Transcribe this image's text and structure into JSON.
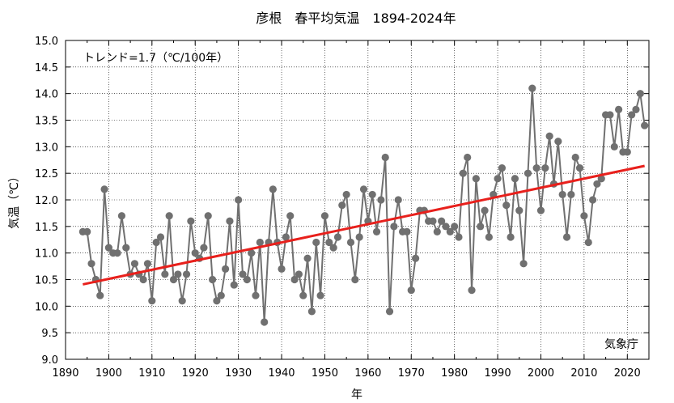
{
  "chart_data": {
    "type": "line",
    "title": "彦根　春平均気温　1894-2024年",
    "xlabel": "年",
    "ylabel": "気温（℃）",
    "annotation": "トレンド=1.7（℃/100年）",
    "source": "気象庁",
    "xlim": [
      1890,
      2025
    ],
    "ylim": [
      9.0,
      15.0
    ],
    "xticks": [
      "1890",
      "1900",
      "1910",
      "1920",
      "1930",
      "1940",
      "1950",
      "1960",
      "1970",
      "1980",
      "1990",
      "2000",
      "2010",
      "2020"
    ],
    "yticks": [
      "9.0",
      "9.5",
      "10.0",
      "10.5",
      "11.0",
      "11.5",
      "12.0",
      "12.5",
      "13.0",
      "13.5",
      "14.0",
      "14.5",
      "15.0"
    ],
    "grid": true,
    "series": [
      {
        "name": "春平均気温",
        "color": "#707070",
        "x": [
          1894,
          1895,
          1896,
          1897,
          1898,
          1899,
          1900,
          1901,
          1902,
          1903,
          1904,
          1905,
          1906,
          1907,
          1908,
          1909,
          1910,
          1911,
          1912,
          1913,
          1914,
          1915,
          1916,
          1917,
          1918,
          1919,
          1920,
          1921,
          1922,
          1923,
          1924,
          1925,
          1926,
          1927,
          1928,
          1929,
          1930,
          1931,
          1932,
          1933,
          1934,
          1935,
          1936,
          1937,
          1938,
          1939,
          1940,
          1941,
          1942,
          1943,
          1944,
          1945,
          1946,
          1947,
          1948,
          1949,
          1950,
          1951,
          1952,
          1953,
          1954,
          1955,
          1956,
          1957,
          1958,
          1959,
          1960,
          1961,
          1962,
          1963,
          1964,
          1965,
          1966,
          1967,
          1968,
          1969,
          1970,
          1971,
          1972,
          1973,
          1974,
          1975,
          1976,
          1977,
          1978,
          1979,
          1980,
          1981,
          1982,
          1983,
          1984,
          1985,
          1986,
          1987,
          1988,
          1989,
          1990,
          1991,
          1992,
          1993,
          1994,
          1995,
          1996,
          1997,
          1998,
          1999,
          2000,
          2001,
          2002,
          2003,
          2004,
          2005,
          2006,
          2007,
          2008,
          2009,
          2010,
          2011,
          2012,
          2013,
          2014,
          2015,
          2016,
          2017,
          2018,
          2019,
          2020,
          2021,
          2022,
          2023,
          2024
        ],
        "values": [
          11.4,
          11.4,
          10.8,
          10.5,
          10.2,
          12.2,
          11.1,
          11.0,
          11.0,
          11.7,
          11.1,
          10.6,
          10.8,
          10.6,
          10.5,
          10.8,
          10.1,
          11.2,
          11.3,
          10.6,
          11.7,
          10.5,
          10.6,
          10.1,
          10.6,
          11.6,
          11.0,
          10.9,
          11.1,
          11.7,
          10.5,
          10.1,
          10.2,
          10.7,
          11.6,
          10.4,
          12.0,
          10.6,
          10.5,
          11.0,
          10.2,
          11.2,
          9.7,
          11.2,
          12.2,
          11.2,
          10.7,
          11.3,
          11.7,
          10.5,
          10.6,
          10.2,
          10.9,
          9.9,
          11.2,
          10.2,
          11.7,
          11.2,
          11.1,
          11.3,
          11.9,
          12.1,
          11.2,
          10.5,
          11.3,
          12.2,
          11.6,
          12.1,
          11.4,
          12.0,
          12.8,
          9.9,
          11.5,
          12.0,
          11.4,
          11.4,
          10.3,
          10.9,
          11.8,
          11.8,
          11.6,
          11.6,
          11.4,
          11.6,
          11.5,
          11.4,
          11.5,
          11.3,
          12.5,
          12.8,
          10.3,
          12.4,
          11.5,
          11.8,
          11.3,
          12.1,
          12.4,
          12.6,
          11.9,
          11.3,
          12.4,
          11.8,
          10.8,
          12.5,
          14.1,
          12.6,
          11.8,
          12.6,
          13.2,
          12.3,
          13.1,
          12.1,
          11.3,
          12.1,
          12.8,
          12.6,
          11.7,
          11.2,
          12.0,
          12.3,
          12.4,
          13.6,
          13.6,
          13.0,
          13.7,
          12.9,
          12.9,
          13.6,
          13.7,
          14.0,
          13.4
        ]
      },
      {
        "name": "トレンド",
        "color": "#e8201c",
        "x": [
          1894,
          2024
        ],
        "values": [
          10.41,
          12.64
        ]
      }
    ]
  }
}
